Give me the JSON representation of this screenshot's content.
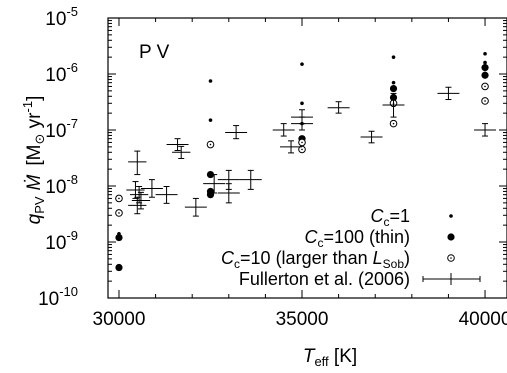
{
  "chart_data": {
    "type": "scatter",
    "panel_label": "P V",
    "xlim": [
      29700,
      40600
    ],
    "ylim_log10": [
      -10,
      -5
    ],
    "x_scale": "linear",
    "y_scale": "log",
    "x_ticks": [
      {
        "value": 30000,
        "label": "30000"
      },
      {
        "value": 35000,
        "label": "35000"
      },
      {
        "value": 40000,
        "label": "40000"
      }
    ],
    "y_ticks": [
      {
        "exp": -10,
        "base": "10",
        "sup": "-10"
      },
      {
        "exp": -9,
        "base": "10",
        "sup": "-9"
      },
      {
        "exp": -8,
        "base": "10",
        "sup": "-8"
      },
      {
        "exp": -7,
        "base": "10",
        "sup": "-7"
      },
      {
        "exp": -6,
        "base": "10",
        "sup": "-6"
      },
      {
        "exp": -5,
        "base": "10",
        "sup": "-5"
      }
    ],
    "xlabel": {
      "main": "T",
      "sub": "eff",
      "unit": " [K]"
    },
    "ylabel": {
      "q": "q",
      "q_sub": "PV",
      "mdot": "Ṁ",
      "unit_open": "[M",
      "sun": "⊙",
      "yr": " yr",
      "yr_sup": "-1",
      "unit_close": "]"
    },
    "series": [
      {
        "legend": {
          "c": "C",
          "c_sub": "c",
          "text": "=1"
        },
        "marker": "small-dot",
        "points": [
          {
            "x": 30000,
            "y": 1.4e-09
          },
          {
            "x": 32500,
            "y": 7.5e-07
          },
          {
            "x": 32500,
            "y": 1.5e-07
          },
          {
            "x": 35000,
            "y": 1.5e-06
          },
          {
            "x": 35000,
            "y": 3e-07
          },
          {
            "x": 35000,
            "y": 1.3e-07
          },
          {
            "x": 37500,
            "y": 2e-06
          },
          {
            "x": 37500,
            "y": 7e-07
          },
          {
            "x": 40000,
            "y": 2.3e-06
          },
          {
            "x": 40000,
            "y": 1.6e-06
          }
        ]
      },
      {
        "legend": {
          "c": "C",
          "c_sub": "c",
          "text": "=100 (thin)"
        },
        "marker": "filled-circle",
        "points": [
          {
            "x": 30000,
            "y": 3.5e-10
          },
          {
            "x": 30000,
            "y": 1.2e-09
          },
          {
            "x": 32500,
            "y": 1.6e-08
          },
          {
            "x": 32500,
            "y": 8e-09
          },
          {
            "x": 32500,
            "y": 7e-09
          },
          {
            "x": 35000,
            "y": 7e-08
          },
          {
            "x": 37500,
            "y": 5.5e-07
          },
          {
            "x": 37500,
            "y": 3.8e-07
          },
          {
            "x": 40000,
            "y": 1.3e-06
          },
          {
            "x": 40000,
            "y": 9.5e-07
          }
        ]
      },
      {
        "legend": {
          "c": "C",
          "c_sub": "c",
          "text": "=10 (larger than ",
          "l": "L",
          "l_sub": "Sob",
          "close": ")"
        },
        "marker": "open-circle",
        "points": [
          {
            "x": 30000,
            "y": 6e-09
          },
          {
            "x": 30000,
            "y": 3.3e-09
          },
          {
            "x": 32500,
            "y": 5.5e-08
          },
          {
            "x": 35000,
            "y": 6e-08
          },
          {
            "x": 35000,
            "y": 4.5e-08
          },
          {
            "x": 37500,
            "y": 1.3e-07
          },
          {
            "x": 37500,
            "y": 3e-07
          },
          {
            "x": 40000,
            "y": 6e-07
          },
          {
            "x": 40000,
            "y": 3.3e-07
          }
        ]
      },
      {
        "legend": {
          "text": "Fullerton et al. (2006)"
        },
        "marker": "errorbar",
        "points": [
          {
            "x": 30500,
            "y": 2.7e-08,
            "xerr": 250,
            "ylo": 1.6e-08,
            "yhi": 4.2e-08
          },
          {
            "x": 30450,
            "y": 8.5e-09,
            "xerr": 250,
            "ylo": 6e-09,
            "yhi": 1.2e-08
          },
          {
            "x": 30550,
            "y": 7e-09,
            "xerr": 250,
            "ylo": 5e-09,
            "yhi": 9.8e-09
          },
          {
            "x": 30600,
            "y": 5.5e-09,
            "xerr": 250,
            "ylo": 3.9e-09,
            "yhi": 7.7e-09
          },
          {
            "x": 30500,
            "y": 4.5e-09,
            "xerr": 250,
            "ylo": 3.2e-09,
            "yhi": 6.3e-09
          },
          {
            "x": 30900,
            "y": 9e-09,
            "xerr": 300,
            "ylo": 6.3e-09,
            "yhi": 1.3e-08
          },
          {
            "x": 31300,
            "y": 7e-09,
            "xerr": 300,
            "ylo": 4.9e-09,
            "yhi": 9.8e-09
          },
          {
            "x": 31600,
            "y": 5.5e-08,
            "xerr": 300,
            "ylo": 4.3e-08,
            "yhi": 7e-08
          },
          {
            "x": 31700,
            "y": 4e-08,
            "xerr": 250,
            "ylo": 3.1e-08,
            "yhi": 5.1e-08
          },
          {
            "x": 32100,
            "y": 4.2e-09,
            "xerr": 300,
            "ylo": 2.9e-09,
            "yhi": 6e-09
          },
          {
            "x": 32600,
            "y": 1.1e-08,
            "xerr": 300,
            "ylo": 7.5e-09,
            "yhi": 1.6e-08
          },
          {
            "x": 33000,
            "y": 7.5e-09,
            "xerr": 300,
            "ylo": 5e-09,
            "yhi": 1.1e-08
          },
          {
            "x": 33000,
            "y": 1.3e-08,
            "xerr": 300,
            "ylo": 8.7e-09,
            "yhi": 1.9e-08
          },
          {
            "x": 33200,
            "y": 9e-08,
            "xerr": 300,
            "ylo": 7e-08,
            "yhi": 1.2e-07
          },
          {
            "x": 33600,
            "y": 1.3e-08,
            "xerr": 300,
            "ylo": 8.7e-09,
            "yhi": 1.9e-08
          },
          {
            "x": 34500,
            "y": 1e-07,
            "xerr": 300,
            "ylo": 7.8e-08,
            "yhi": 1.3e-07
          },
          {
            "x": 34700,
            "y": 5e-08,
            "xerr": 300,
            "ylo": 3.9e-08,
            "yhi": 6.4e-08
          },
          {
            "x": 35000,
            "y": 1.7e-07,
            "xerr": 300,
            "ylo": 1.3e-07,
            "yhi": 2.3e-07
          },
          {
            "x": 35000,
            "y": 1.3e-07,
            "xerr": 300,
            "ylo": 1e-07,
            "yhi": 1.7e-07
          },
          {
            "x": 36000,
            "y": 2.5e-07,
            "xerr": 300,
            "ylo": 2e-07,
            "yhi": 3.2e-07
          },
          {
            "x": 36900,
            "y": 7.5e-08,
            "xerr": 300,
            "ylo": 5.9e-08,
            "yhi": 9.5e-08
          },
          {
            "x": 37500,
            "y": 2.8e-07,
            "xerr": 300,
            "ylo": 1.7e-07,
            "yhi": 4.5e-07
          },
          {
            "x": 39000,
            "y": 4.5e-07,
            "xerr": 300,
            "ylo": 3.5e-07,
            "yhi": 5.8e-07
          },
          {
            "x": 40000,
            "y": 1e-07,
            "xerr": 300,
            "ylo": 7.8e-08,
            "yhi": 1.3e-07
          }
        ]
      }
    ]
  }
}
